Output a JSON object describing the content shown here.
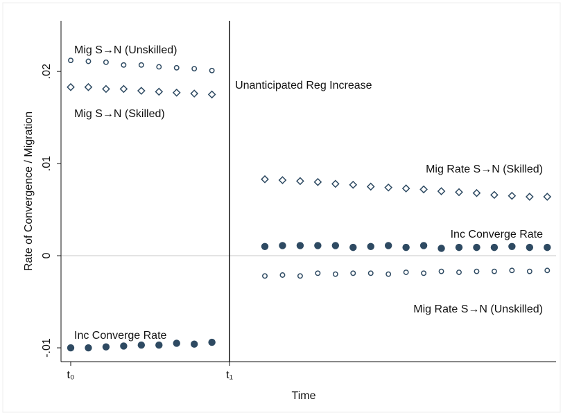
{
  "chart_data": {
    "type": "scatter",
    "xlabel": "Time",
    "ylabel": "Rate of Convergence / Migration",
    "xlim": [
      -0.55,
      27.5
    ],
    "ylim": [
      -0.0115,
      0.0255
    ],
    "xticks": [
      {
        "value": 0,
        "label": "t₀"
      },
      {
        "value": 9,
        "label": "t₁"
      }
    ],
    "yticks": [
      {
        "value": -0.01,
        "label": "-.01"
      },
      0,
      {
        "value": 0.01,
        "label": ".01"
      },
      {
        "value": 0.02,
        "label": ".02"
      }
    ],
    "zero_line": true,
    "vline": {
      "value": 9,
      "label": "Unanticipated Reg Increase"
    },
    "series": [
      {
        "name": "Mig S→N (Unskilled)",
        "marker": "circle-hollow",
        "color": "#2e4a62",
        "x": [
          0,
          1,
          2,
          3,
          4,
          5,
          6,
          7,
          8
        ],
        "values": [
          0.0212,
          0.0211,
          0.021,
          0.0207,
          0.0207,
          0.0205,
          0.0204,
          0.0203,
          0.0201
        ]
      },
      {
        "name": "Mig S→N (Skilled)",
        "marker": "diamond-hollow",
        "color": "#2e4a62",
        "x": [
          0,
          1,
          2,
          3,
          4,
          5,
          6,
          7,
          8
        ],
        "values": [
          0.0183,
          0.0183,
          0.0181,
          0.0181,
          0.0179,
          0.0178,
          0.0177,
          0.0176,
          0.0175
        ]
      },
      {
        "name": "Inc Converge Rate",
        "marker": "circle-filled",
        "color": "#2e4a62",
        "x": [
          0,
          1,
          2,
          3,
          4,
          5,
          6,
          7,
          8
        ],
        "values": [
          -0.01,
          -0.01,
          -0.0099,
          -0.0098,
          -0.0097,
          -0.0097,
          -0.0095,
          -0.0096,
          -0.0094
        ]
      },
      {
        "name": "Mig Rate S→N (Skilled)",
        "marker": "diamond-hollow",
        "color": "#2e4a62",
        "x": [
          11,
          12,
          13,
          14,
          15,
          16,
          17,
          18,
          19,
          20,
          21,
          22,
          23,
          24,
          25,
          26,
          27
        ],
        "values": [
          0.0083,
          0.0082,
          0.0081,
          0.008,
          0.0078,
          0.0077,
          0.0075,
          0.0074,
          0.0073,
          0.0072,
          0.007,
          0.0069,
          0.0068,
          0.0066,
          0.0065,
          0.0064,
          0.0064
        ]
      },
      {
        "name": "Inc Converge Rate",
        "marker": "circle-filled",
        "color": "#2e4a62",
        "x": [
          11,
          12,
          13,
          14,
          15,
          16,
          17,
          18,
          19,
          20,
          21,
          22,
          23,
          24,
          25,
          26,
          27
        ],
        "values": [
          0.001,
          0.0011,
          0.0011,
          0.0011,
          0.0011,
          0.0009,
          0.001,
          0.0011,
          0.0009,
          0.0011,
          0.0008,
          0.0009,
          0.0009,
          0.0009,
          0.001,
          0.0009,
          0.0009
        ]
      },
      {
        "name": "Mig Rate S→N (Unskilled)",
        "marker": "circle-hollow",
        "color": "#2e4a62",
        "x": [
          11,
          12,
          13,
          14,
          15,
          16,
          17,
          18,
          19,
          20,
          21,
          22,
          23,
          24,
          25,
          26,
          27
        ],
        "values": [
          -0.0022,
          -0.0021,
          -0.0022,
          -0.0019,
          -0.002,
          -0.0019,
          -0.0019,
          -0.002,
          -0.0018,
          -0.0019,
          -0.0017,
          -0.0018,
          -0.0017,
          -0.0017,
          -0.0016,
          -0.0017,
          -0.0016
        ]
      }
    ]
  }
}
